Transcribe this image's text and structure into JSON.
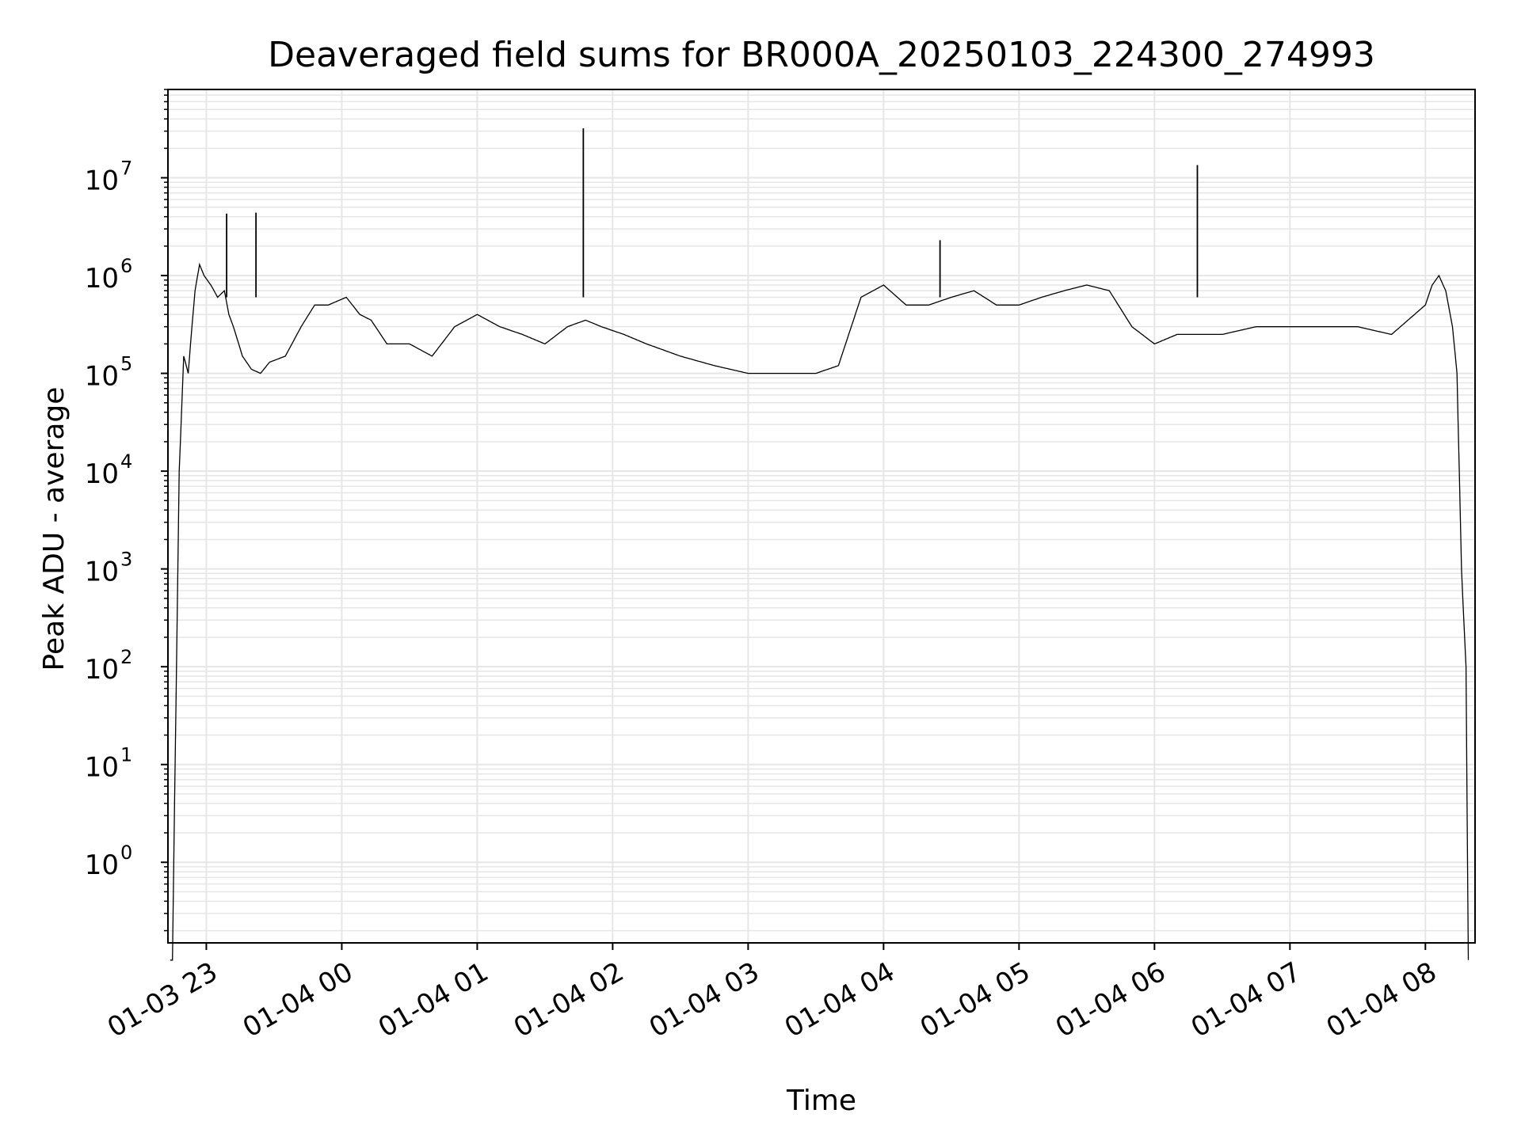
{
  "chart_data": {
    "type": "line",
    "title": "Deaveraged field sums for BR000A_20250103_224300_274993",
    "xlabel": "Time",
    "ylabel": "Peak ADU - average",
    "yscale": "log",
    "ylim": [
      0.15,
      80000000
    ],
    "xlim": [
      "2025-01-03 22:43",
      "2025-01-04 08:22"
    ],
    "grid": true,
    "grid_color": "#e6e6e6",
    "line_color": "#000000",
    "x_ticks": [
      {
        "label": "01-03 23",
        "time": "2025-01-03 23:00"
      },
      {
        "label": "01-04 00",
        "time": "2025-01-04 00:00"
      },
      {
        "label": "01-04 01",
        "time": "2025-01-04 01:00"
      },
      {
        "label": "01-04 02",
        "time": "2025-01-04 02:00"
      },
      {
        "label": "01-04 03",
        "time": "2025-01-04 03:00"
      },
      {
        "label": "01-04 04",
        "time": "2025-01-04 04:00"
      },
      {
        "label": "01-04 05",
        "time": "2025-01-04 05:00"
      },
      {
        "label": "01-04 06",
        "time": "2025-01-04 06:00"
      },
      {
        "label": "01-04 07",
        "time": "2025-01-04 07:00"
      },
      {
        "label": "01-04 08",
        "time": "2025-01-04 08:00"
      }
    ],
    "y_ticks": [
      {
        "base": "10",
        "exp": "0",
        "value": 1
      },
      {
        "base": "10",
        "exp": "1",
        "value": 10
      },
      {
        "base": "10",
        "exp": "2",
        "value": 100
      },
      {
        "base": "10",
        "exp": "3",
        "value": 1000
      },
      {
        "base": "10",
        "exp": "4",
        "value": 10000
      },
      {
        "base": "10",
        "exp": "5",
        "value": 100000
      },
      {
        "base": "10",
        "exp": "6",
        "value": 1000000
      },
      {
        "base": "10",
        "exp": "7",
        "value": 10000000
      }
    ],
    "series": [
      {
        "x": [
          "2025-01-03 22:44",
          "2025-01-03 22:45",
          "2025-01-03 22:46",
          "2025-01-03 22:48",
          "2025-01-03 22:50",
          "2025-01-03 22:52",
          "2025-01-03 22:53",
          "2025-01-03 22:55",
          "2025-01-03 22:57",
          "2025-01-03 22:59",
          "2025-01-03 23:02",
          "2025-01-03 23:05",
          "2025-01-03 23:08",
          "2025-01-03 23:10",
          "2025-01-03 23:12",
          "2025-01-03 23:16",
          "2025-01-03 23:20",
          "2025-01-03 23:24",
          "2025-01-03 23:28",
          "2025-01-03 23:35",
          "2025-01-03 23:42",
          "2025-01-03 23:48",
          "2025-01-03 23:54",
          "2025-01-04 00:02",
          "2025-01-04 00:08",
          "2025-01-04 00:13",
          "2025-01-04 00:20",
          "2025-01-04 00:30",
          "2025-01-04 00:40",
          "2025-01-04 00:50",
          "2025-01-04 01:00",
          "2025-01-04 01:10",
          "2025-01-04 01:20",
          "2025-01-04 01:30",
          "2025-01-04 01:40",
          "2025-01-04 01:48",
          "2025-01-04 01:55",
          "2025-01-04 02:05",
          "2025-01-04 02:15",
          "2025-01-04 02:30",
          "2025-01-04 02:45",
          "2025-01-04 03:00",
          "2025-01-04 03:15",
          "2025-01-04 03:30",
          "2025-01-04 03:40",
          "2025-01-04 03:50",
          "2025-01-04 04:00",
          "2025-01-04 04:10",
          "2025-01-04 04:20",
          "2025-01-04 04:30",
          "2025-01-04 04:40",
          "2025-01-04 04:50",
          "2025-01-04 05:00",
          "2025-01-04 05:10",
          "2025-01-04 05:20",
          "2025-01-04 05:30",
          "2025-01-04 05:40",
          "2025-01-04 05:50",
          "2025-01-04 06:00",
          "2025-01-04 06:10",
          "2025-01-04 06:20",
          "2025-01-04 06:30",
          "2025-01-04 06:45",
          "2025-01-04 07:00",
          "2025-01-04 07:15",
          "2025-01-04 07:30",
          "2025-01-04 07:45",
          "2025-01-04 08:00",
          "2025-01-04 08:03",
          "2025-01-04 08:06",
          "2025-01-04 08:09",
          "2025-01-04 08:12",
          "2025-01-04 08:14",
          "2025-01-04 08:16",
          "2025-01-04 08:17",
          "2025-01-04 08:18",
          "2025-01-04 08:19"
        ],
        "y": [
          0.1,
          0.1,
          5,
          10000,
          150000,
          100000,
          200000,
          700000,
          1300000,
          1000000,
          800000,
          600000,
          700000,
          400000,
          300000,
          150000,
          110000,
          100000,
          130000,
          150000,
          300000,
          500000,
          500000,
          600000,
          400000,
          350000,
          200000,
          200000,
          150000,
          300000,
          400000,
          300000,
          250000,
          200000,
          300000,
          350000,
          300000,
          250000,
          200000,
          150000,
          120000,
          100000,
          100000,
          100000,
          120000,
          600000,
          800000,
          500000,
          500000,
          600000,
          700000,
          500000,
          500000,
          600000,
          700000,
          800000,
          700000,
          300000,
          200000,
          250000,
          250000,
          250000,
          300000,
          300000,
          300000,
          300000,
          250000,
          500000,
          800000,
          1000000,
          700000,
          300000,
          100000,
          1000,
          300,
          100,
          0.1
        ]
      }
    ],
    "spikes": [
      {
        "time": "2025-01-03 23:09",
        "value": 4300000
      },
      {
        "time": "2025-01-03 23:22",
        "value": 4400000
      },
      {
        "time": "2025-01-04 01:47",
        "value": 32000000
      },
      {
        "time": "2025-01-04 04:25",
        "value": 2300000
      },
      {
        "time": "2025-01-04 06:19",
        "value": 13500000
      }
    ]
  }
}
